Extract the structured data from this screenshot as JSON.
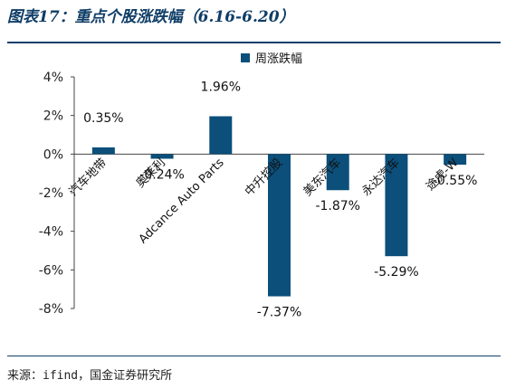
{
  "header": {
    "title": "图表17：重点个股涨跌幅（6.16-6.20）"
  },
  "footer": {
    "source": "来源：ifind，国金证券研究所"
  },
  "colors": {
    "bar": "#0b4f7a",
    "rule": "#123f6b"
  },
  "chart_data": {
    "type": "bar",
    "categories": [
      "汽车地带",
      "奥莱利",
      "Adcance Auto Parts",
      "中升控股",
      "美东汽车",
      "永达汽车",
      "途虎-W"
    ],
    "series": [
      {
        "name": "周涨跌幅",
        "values": [
          0.35,
          -0.24,
          1.96,
          -7.37,
          -1.87,
          -5.29,
          -0.55
        ]
      }
    ],
    "data_labels": [
      "0.35%",
      "-0.24%",
      "1.96%",
      "-7.37%",
      "-1.87%",
      "-5.29%",
      "-0.55%"
    ],
    "y_ticks": [
      "4%",
      "2%",
      "0%",
      "-2%",
      "-4%",
      "-6%",
      "-8%"
    ],
    "ylim": [
      -8,
      4
    ],
    "unit": "%",
    "legend_position": "top-center",
    "grid": false
  }
}
